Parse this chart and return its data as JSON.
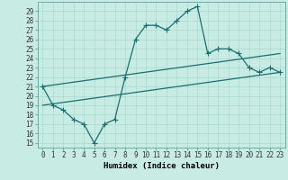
{
  "title": "",
  "xlabel": "Humidex (Indice chaleur)",
  "bg_color": "#c8ece4",
  "grid_color": "#a8d8d0",
  "line_color": "#1a6e6e",
  "xlim": [
    -0.5,
    23.5
  ],
  "ylim": [
    14.5,
    30.0
  ],
  "xticks": [
    0,
    1,
    2,
    3,
    4,
    5,
    6,
    7,
    8,
    9,
    10,
    11,
    12,
    13,
    14,
    15,
    16,
    17,
    18,
    19,
    20,
    21,
    22,
    23
  ],
  "yticks": [
    15,
    16,
    17,
    18,
    19,
    20,
    21,
    22,
    23,
    24,
    25,
    26,
    27,
    28,
    29
  ],
  "line1_x": [
    0,
    1,
    2,
    3,
    4,
    5,
    6,
    7,
    8,
    9,
    10,
    11,
    12,
    13,
    14,
    15,
    16,
    17,
    18,
    19,
    20,
    21,
    22,
    23
  ],
  "line1_y": [
    21,
    19,
    18.5,
    17.5,
    17,
    15,
    17,
    17.5,
    22,
    26,
    27.5,
    27.5,
    27,
    28,
    29,
    29.5,
    24.5,
    25,
    25,
    24.5,
    23,
    22.5,
    23,
    22.5
  ],
  "line2_x": [
    0,
    23
  ],
  "line2_y": [
    19.0,
    22.5
  ],
  "line3_x": [
    0,
    23
  ],
  "line3_y": [
    21.0,
    24.5
  ],
  "marker": "+",
  "marker_size": 5,
  "linewidth": 0.9,
  "tick_fontsize": 5.5,
  "xlabel_fontsize": 6.5
}
